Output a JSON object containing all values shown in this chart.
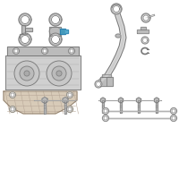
{
  "bg_color": "#ffffff",
  "line_color": "#888888",
  "part_color": "#cccccc",
  "part_color2": "#bbbbbb",
  "part_color3": "#aaaaaa",
  "highlight_color": "#3399cc",
  "dark_color": "#666666",
  "edge_color": "#777777",
  "tan_color": "#c8b89a",
  "fig_width": 2.0,
  "fig_height": 2.0,
  "dpi": 100
}
